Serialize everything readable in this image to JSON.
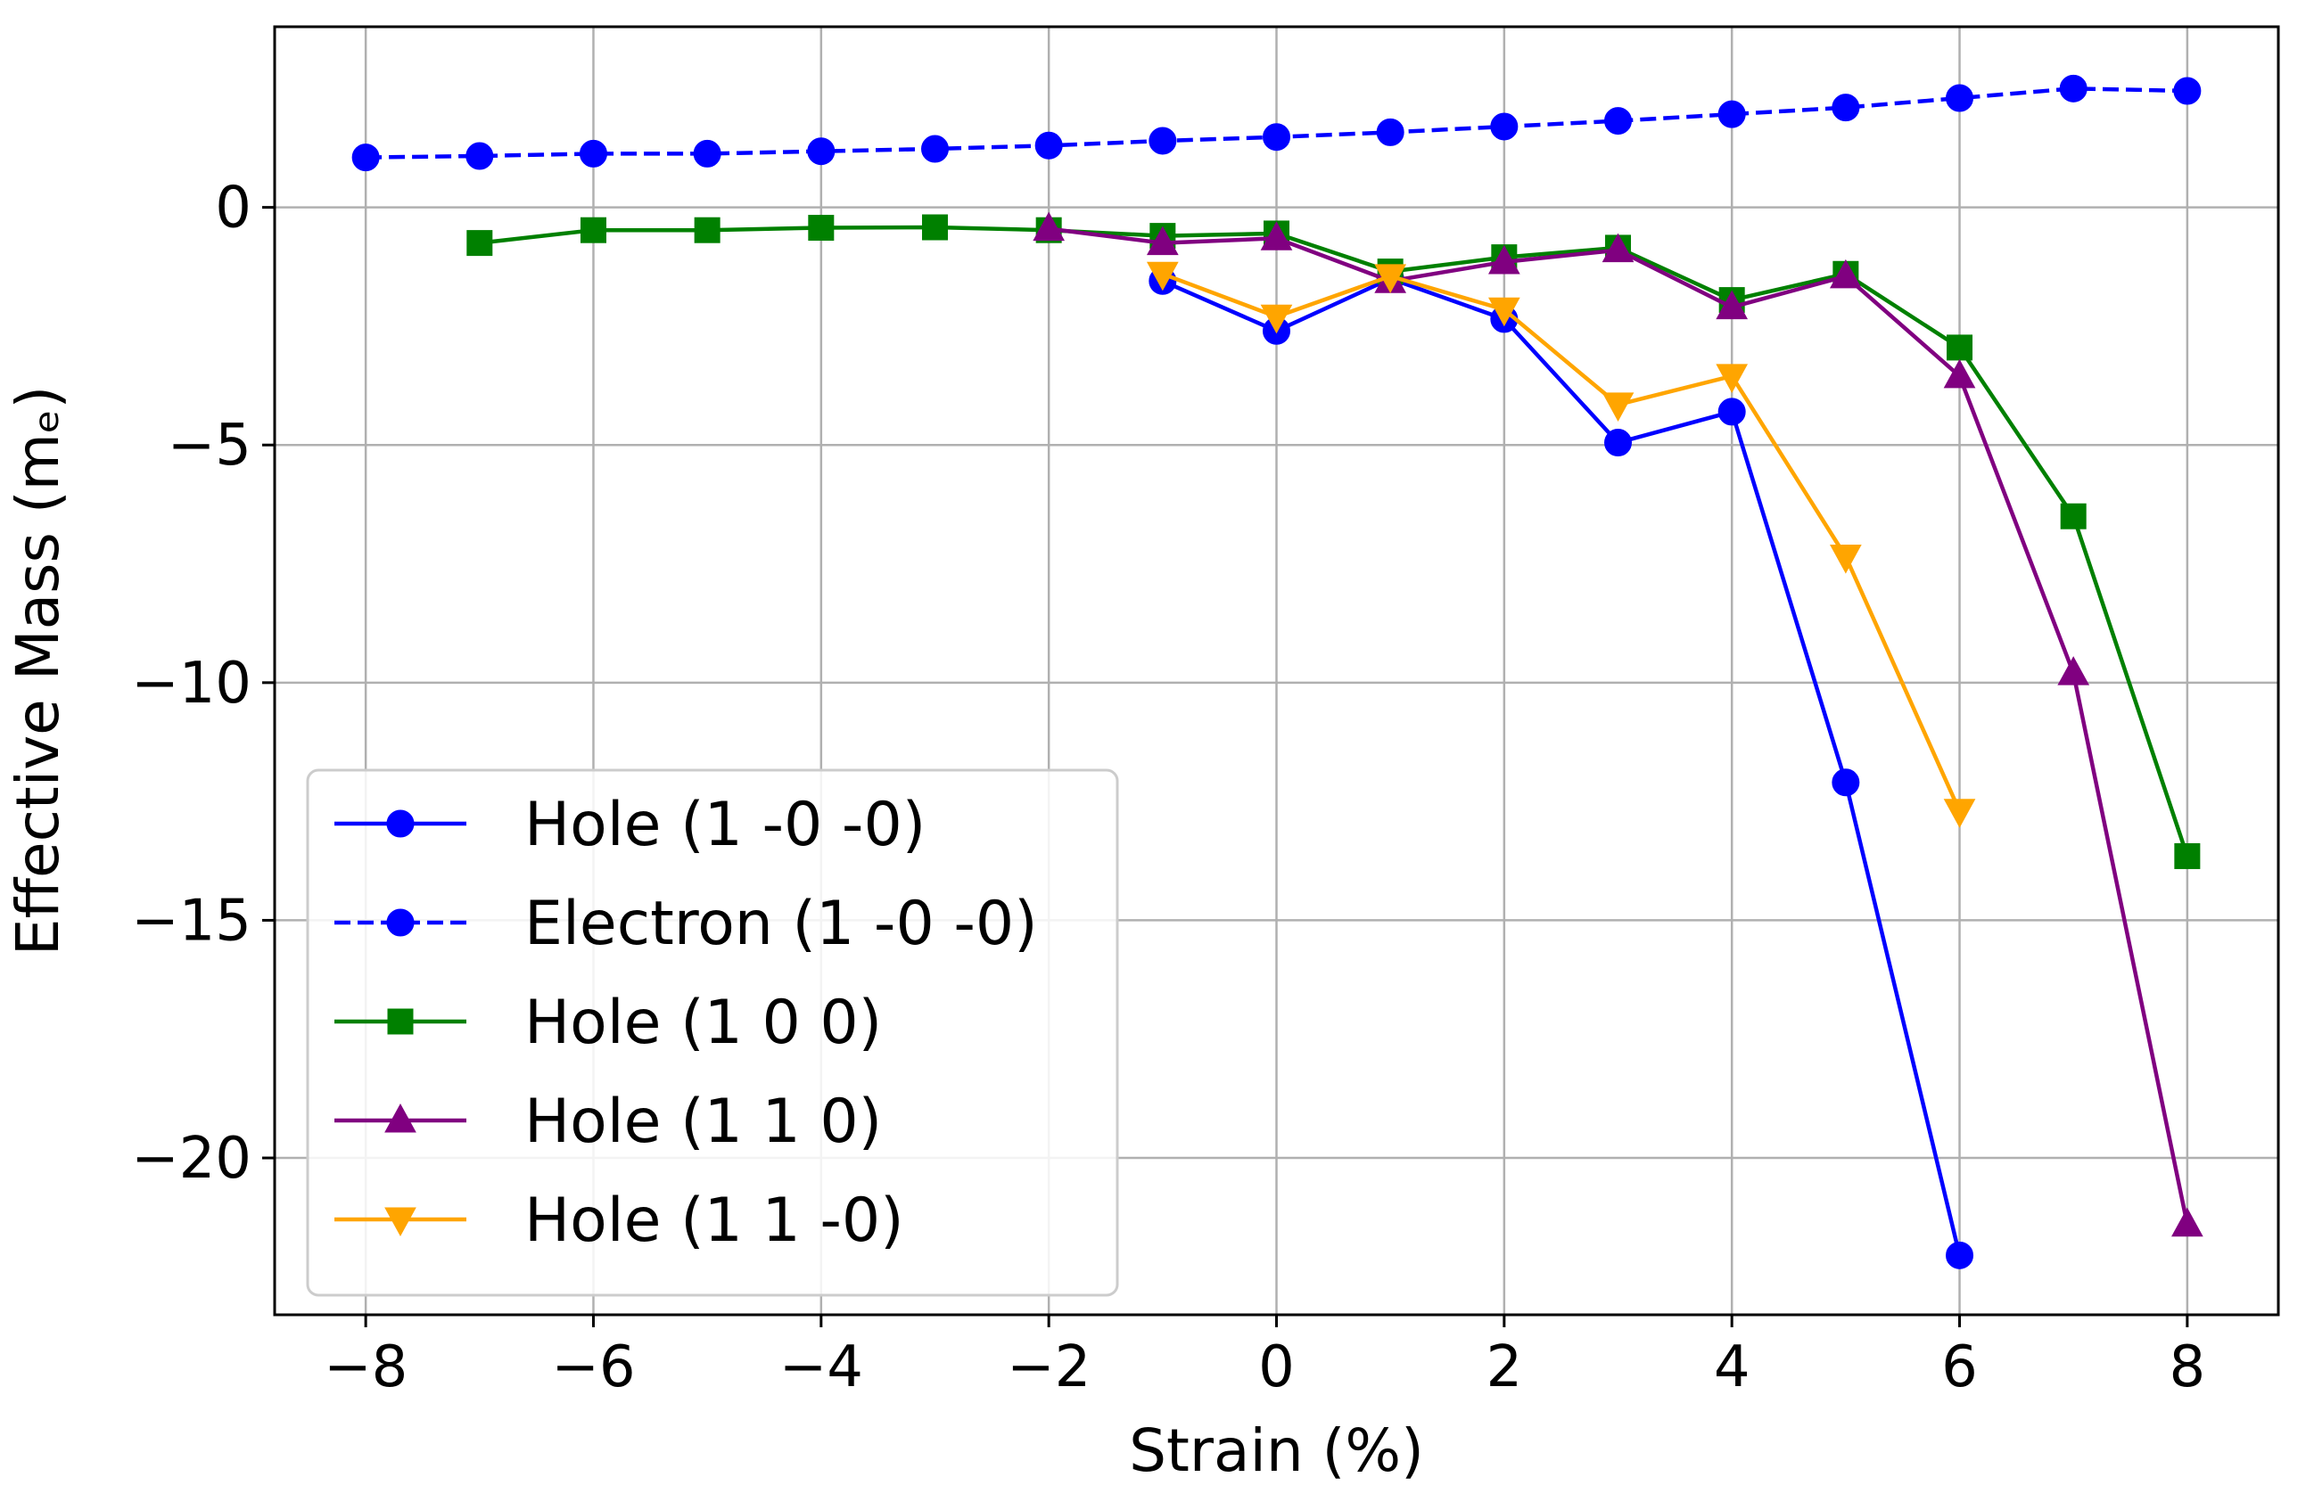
{
  "chart_data": {
    "type": "line",
    "title": "",
    "xlabel": "Strain (%)",
    "ylabel": "Effective Mass (mₑ)",
    "xlim": [
      -8.8,
      8.8
    ],
    "ylim": [
      -23.3,
      3.8
    ],
    "xticks": [
      -8,
      -6,
      -4,
      -2,
      0,
      2,
      4,
      6,
      8
    ],
    "yticks": [
      0,
      -5,
      -10,
      -15,
      -20
    ],
    "xtick_labels": [
      "−8",
      "−6",
      "−4",
      "−2",
      "0",
      "2",
      "4",
      "6",
      "8"
    ],
    "ytick_labels": [
      "0",
      "−5",
      "−10",
      "−15",
      "−20"
    ],
    "grid": true,
    "legend_position": "lower-left",
    "series": [
      {
        "name": "Hole (1 -0 -0)",
        "color": "#0000ff",
        "linestyle": "solid",
        "marker": "circle",
        "x": [
          -1,
          0,
          1,
          2,
          3,
          4,
          5,
          6
        ],
        "y": [
          -1.55,
          -2.6,
          -1.5,
          -2.35,
          -4.95,
          -4.3,
          -12.1,
          -22.05
        ]
      },
      {
        "name": "Electron (1 -0 -0)",
        "color": "#0000ff",
        "linestyle": "dashed",
        "marker": "circle",
        "x": [
          -8,
          -7,
          -6,
          -5,
          -4,
          -3,
          -2,
          -1,
          0,
          1,
          2,
          3,
          4,
          5,
          6,
          7,
          8
        ],
        "y": [
          1.05,
          1.08,
          1.13,
          1.13,
          1.18,
          1.23,
          1.3,
          1.4,
          1.48,
          1.58,
          1.7,
          1.82,
          1.96,
          2.1,
          2.3,
          2.5,
          2.45
        ]
      },
      {
        "name": "Hole (1 0 0)",
        "color": "#008000",
        "linestyle": "solid",
        "marker": "square",
        "x": [
          -7,
          -6,
          -5,
          -4,
          -3,
          -2,
          -1,
          0,
          1,
          2,
          3,
          4,
          5,
          6,
          7,
          8
        ],
        "y": [
          -0.75,
          -0.48,
          -0.48,
          -0.43,
          -0.42,
          -0.48,
          -0.6,
          -0.55,
          -1.35,
          -1.05,
          -0.85,
          -1.95,
          -1.4,
          -2.95,
          -6.5,
          -13.65
        ]
      },
      {
        "name": "Hole (1 1 0)",
        "color": "#800080",
        "linestyle": "solid",
        "marker": "triangle-up",
        "x": [
          -2,
          -1,
          0,
          1,
          2,
          3,
          4,
          5,
          6,
          7,
          8
        ],
        "y": [
          -0.45,
          -0.75,
          -0.65,
          -1.55,
          -1.15,
          -0.9,
          -2.1,
          -1.45,
          -3.55,
          -9.8,
          -21.4
        ]
      },
      {
        "name": "Hole (1 1 -0)",
        "color": "#ffa500",
        "linestyle": "solid",
        "marker": "triangle-down",
        "x": [
          -1,
          0,
          1,
          2,
          3,
          4,
          5,
          6
        ],
        "y": [
          -1.4,
          -2.3,
          -1.45,
          -2.15,
          -4.15,
          -3.55,
          -7.35,
          -12.7
        ]
      }
    ]
  }
}
